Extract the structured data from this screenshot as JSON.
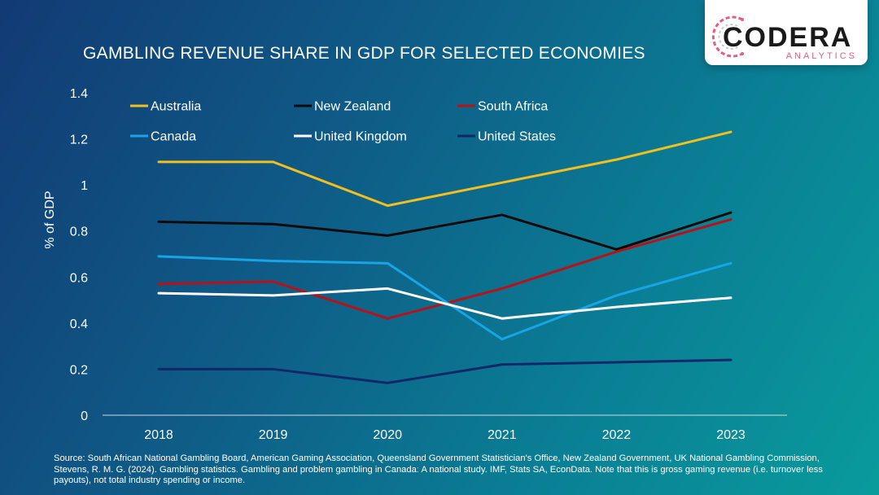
{
  "colors": {
    "australia": "#f2c01e",
    "new_zealand": "#0b0b0b",
    "south_africa": "#b61218",
    "canada": "#18a5e8",
    "united_kingdom": "#ffffff",
    "united_states": "#102868",
    "brand_pink": "#e65b86"
  },
  "logo": {
    "main": "CODERA",
    "sub": "ANALYTICS"
  },
  "footer": {
    "source": "Source:  South African National Gambling Board, American Gaming Association, Queensland Government Statistician's Office, New Zealand Government, UK National Gambling Commission, Stevens, R. M. G. (2024). Gambling statistics. Gambling and problem gambling in Canada: A national study. IMF, Stats SA, EconData. Note that this is gross gaming revenue (i.e. turnover less payouts), not total industry spending or income."
  },
  "chart_data": {
    "type": "line",
    "title": "GAMBLING REVENUE SHARE IN GDP FOR SELECTED ECONOMIES",
    "xlabel": "",
    "ylabel": "% of GDP",
    "x": [
      "2018",
      "2019",
      "2020",
      "2021",
      "2022",
      "2023"
    ],
    "ylim": [
      0,
      1.4
    ],
    "yticks": [
      "0",
      "0.2",
      "0.4",
      "0.6",
      "0.8",
      "1",
      "1.2",
      "1.4"
    ],
    "grid": false,
    "legend_position": "top",
    "series": [
      {
        "name": "Australia",
        "color": "#f2c01e",
        "values": [
          1.1,
          1.1,
          0.91,
          1.01,
          1.11,
          1.23
        ]
      },
      {
        "name": "New Zealand",
        "color": "#0b0b0b",
        "values": [
          0.84,
          0.83,
          0.78,
          0.87,
          0.72,
          0.88
        ]
      },
      {
        "name": "South Africa",
        "color": "#b61218",
        "values": [
          0.57,
          0.58,
          0.42,
          0.55,
          0.71,
          0.85
        ]
      },
      {
        "name": "Canada",
        "color": "#18a5e8",
        "values": [
          0.69,
          0.67,
          0.66,
          0.33,
          0.52,
          0.66
        ]
      },
      {
        "name": "United Kingdom",
        "color": "#ffffff",
        "values": [
          0.53,
          0.52,
          0.55,
          0.42,
          0.47,
          0.51
        ]
      },
      {
        "name": "United States",
        "color": "#102868",
        "values": [
          0.2,
          0.2,
          0.14,
          0.22,
          0.23,
          0.24
        ]
      }
    ]
  }
}
